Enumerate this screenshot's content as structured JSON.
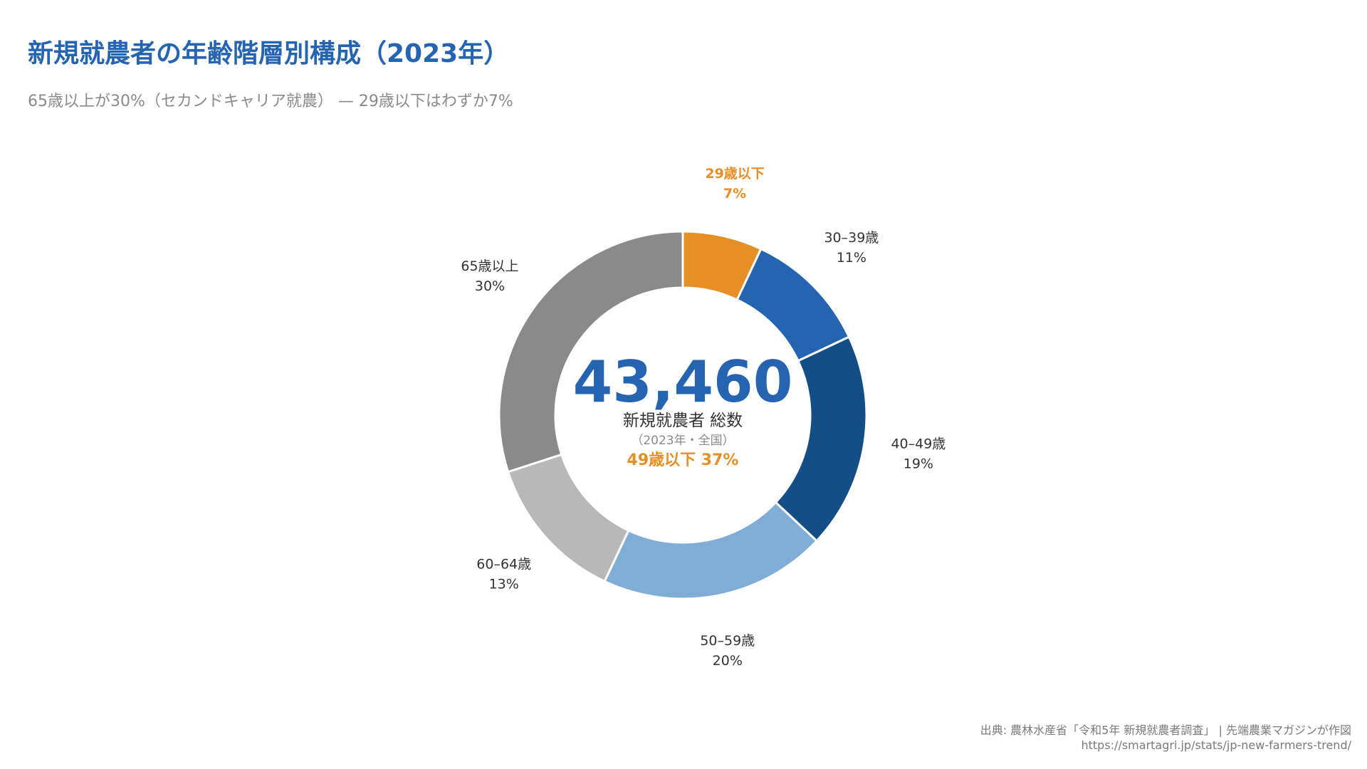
{
  "header": {
    "title": "新規就農者の年齢階層別構成（2023年）",
    "subtitle": "65歳以上が30%（セカンドキャリア就農） — 29歳以下はわずか7%"
  },
  "chart_data": {
    "type": "pie",
    "variant": "donut",
    "title": "新規就農者の年齢階層別構成（2023年）",
    "unit": "%",
    "start": "top, clockwise",
    "slices": [
      {
        "label": "29歳以下",
        "value": 7,
        "value_label": "7%",
        "color": "#E68F26",
        "label_color": "#E68F26"
      },
      {
        "label": "30–39歳",
        "value": 11,
        "value_label": "11%",
        "color": "#2464B0",
        "label_color": "#333333"
      },
      {
        "label": "40–49歳",
        "value": 19,
        "value_label": "19%",
        "color": "#134F86",
        "label_color": "#333333"
      },
      {
        "label": "50–59歳",
        "value": 20,
        "value_label": "20%",
        "color": "#7FADD6",
        "label_color": "#333333"
      },
      {
        "label": "60–64歳",
        "value": 13,
        "value_label": "13%",
        "color": "#B8B8B8",
        "label_color": "#333333"
      },
      {
        "label": "65歳以上",
        "value": 30,
        "value_label": "30%",
        "color": "#8A8A8A",
        "label_color": "#333333"
      }
    ],
    "center": {
      "total": "43,460",
      "total_label": "新規就農者 総数",
      "scope": "（2023年・全国）",
      "highlight": "49歳以下 37%"
    }
  },
  "footer": {
    "source": "出典: 農林水産省「令和5年 新規就農者調査」 | 先端農業マガジンが作図",
    "url": "https://smartagri.jp/stats/jp-new-farmers-trend/"
  },
  "colors": {
    "accent": "#2464B0",
    "highlight": "#E68F26"
  }
}
